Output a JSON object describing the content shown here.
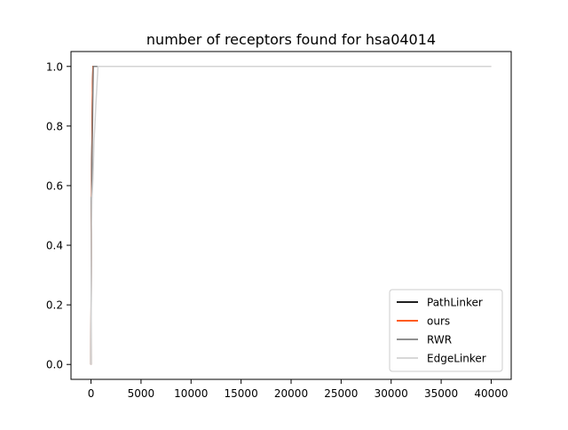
{
  "chart_data": {
    "type": "line",
    "title": "number of receptors found for hsa04014",
    "xlabel": "",
    "ylabel": "",
    "xlim": [
      -2000,
      42000
    ],
    "ylim": [
      -0.05,
      1.05
    ],
    "xticks": [
      0,
      5000,
      10000,
      15000,
      20000,
      25000,
      30000,
      35000,
      40000
    ],
    "yticks": [
      0.0,
      0.2,
      0.4,
      0.6,
      0.8,
      1.0
    ],
    "xtick_labels": [
      "0",
      "5000",
      "10000",
      "15000",
      "20000",
      "25000",
      "30000",
      "35000",
      "40000"
    ],
    "ytick_labels": [
      "0.0",
      "0.2",
      "0.4",
      "0.6",
      "0.8",
      "1.0"
    ],
    "grid": false,
    "legend_position": "lower-right",
    "series": [
      {
        "name": "PathLinker",
        "color": "#000000",
        "x": [
          0,
          40,
          80,
          120,
          160,
          200,
          250,
          300,
          40000
        ],
        "y": [
          0.0,
          0.44,
          0.69,
          0.81,
          0.94,
          1.0,
          1.0,
          1.0,
          1.0
        ]
      },
      {
        "name": "ours",
        "color": "#ff4500",
        "x": [
          0,
          40,
          80,
          120,
          160,
          200,
          260,
          320,
          40000
        ],
        "y": [
          0.0,
          0.5,
          0.62,
          0.81,
          0.94,
          1.0,
          1.0,
          1.0,
          1.0
        ]
      },
      {
        "name": "RWR",
        "color": "#808080",
        "x": [
          0,
          40,
          80,
          130,
          180,
          230,
          280,
          350,
          40000
        ],
        "y": [
          0.0,
          0.56,
          0.56,
          0.75,
          0.88,
          1.0,
          1.0,
          1.0,
          1.0
        ]
      },
      {
        "name": "EdgeLinker",
        "color": "#d3d3d3",
        "x": [
          0,
          50,
          100,
          200,
          300,
          400,
          500,
          600,
          700,
          40000
        ],
        "y": [
          0.0,
          0.44,
          0.56,
          0.62,
          0.75,
          0.81,
          0.88,
          0.94,
          1.0,
          1.0
        ]
      }
    ]
  }
}
